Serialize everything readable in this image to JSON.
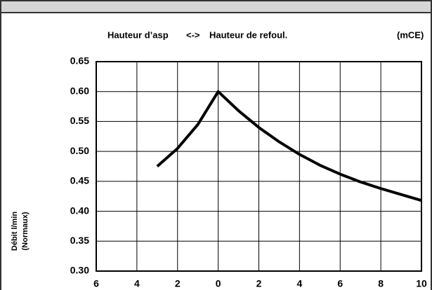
{
  "chart_data": {
    "type": "line",
    "title_left": "Hauteur d’asp",
    "title_arrow": "<->",
    "title_right": "Hauteur de refoul.",
    "unit": "(mCE)",
    "ylabel": "Débit l/min",
    "ylabel_sub": "(Normaux)",
    "x": [
      -3,
      -2,
      -1,
      0,
      1,
      2,
      3,
      4,
      5,
      6,
      7,
      8,
      9,
      10
    ],
    "values": [
      0.475,
      0.505,
      0.545,
      0.6,
      0.568,
      0.54,
      0.516,
      0.495,
      0.477,
      0.462,
      0.449,
      0.438,
      0.428,
      0.418
    ],
    "color": "#000000",
    "xlim": [
      -6,
      10
    ],
    "xticks": [
      {
        "value": -6,
        "label": "6"
      },
      {
        "value": -4,
        "label": "4"
      },
      {
        "value": -2,
        "label": "2"
      },
      0,
      2,
      4,
      6,
      8,
      10
    ],
    "ylim": [
      0.3,
      0.65
    ],
    "yticks": [
      {
        "value": 0.3,
        "label": "0.30"
      },
      0.35,
      {
        "value": 0.4,
        "label": "0.40"
      },
      0.45,
      {
        "value": 0.5,
        "label": "0.50"
      },
      0.55,
      {
        "value": 0.6,
        "label": "0.60"
      },
      0.65
    ],
    "grid": true
  }
}
